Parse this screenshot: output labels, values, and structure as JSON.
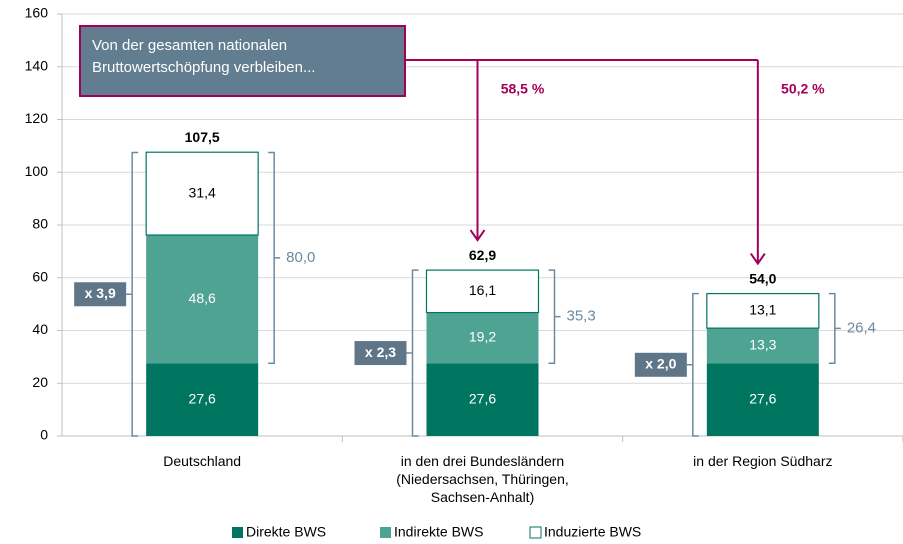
{
  "chart_data": {
    "type": "stacked_bar",
    "categories": [
      "Deutschland",
      "in den drei Bundesländern\n(Niedersachsen, Thüringen,\nSachsen-Anhalt)",
      "in der Region Südharz"
    ],
    "series": [
      {
        "name": "Direkte BWS",
        "color": "#00755f",
        "values": [
          27.6,
          27.6,
          27.6
        ],
        "value_labels": [
          "27,6",
          "27,6",
          "27,6"
        ]
      },
      {
        "name": "Indirekte BWS",
        "color": "#4fa392",
        "values": [
          48.6,
          19.2,
          13.3
        ],
        "value_labels": [
          "48,6",
          "19,2",
          "13,3"
        ]
      },
      {
        "name": "Induzierte BWS",
        "color": "#ffffff",
        "values": [
          31.4,
          16.1,
          13.1
        ],
        "value_labels": [
          "31,4",
          "16,1",
          "13,1"
        ]
      }
    ],
    "totals": {
      "values": [
        107.5,
        62.9,
        54.0
      ],
      "value_labels": [
        "107,5",
        "62,9",
        "54,0"
      ]
    },
    "brackets": {
      "values": [
        80.0,
        35.3,
        26.4
      ],
      "value_labels": [
        "80,0",
        "35,3",
        "26,4"
      ]
    },
    "multipliers": {
      "values": [
        3.9,
        2.3,
        2.0
      ],
      "value_labels": [
        "x 3,9",
        "x 2,3",
        "x 2,0"
      ]
    },
    "shares": {
      "values": [
        58.5,
        50.2
      ],
      "value_labels": [
        "58,5 %",
        "50,2 %"
      ]
    },
    "callout": "Von der gesamten nationalen\nBruttowertschöpfung verbleiben...",
    "ylim": [
      0,
      160
    ],
    "yticks": [
      0,
      20,
      40,
      60,
      80,
      100,
      120,
      140,
      160
    ],
    "grid": true,
    "legend": "bottom"
  }
}
